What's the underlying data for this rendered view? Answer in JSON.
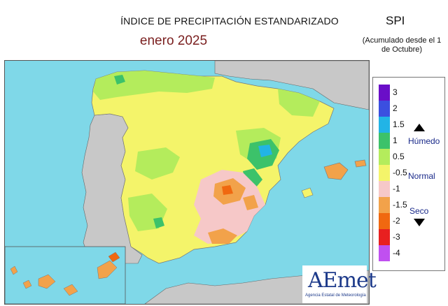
{
  "title": "ÍNDICE DE PRECIPITACIÓN ESTANDARIZADO",
  "period": "enero  2025",
  "index_name": "SPI",
  "accumulation_note": "(Acumulado desde el 1 de Octubre)",
  "legend": {
    "wet_label": "Húmedo",
    "normal_label": "Normal",
    "dry_label": "Seco",
    "classes": [
      {
        "tick": "3",
        "color": "#6a0ec8"
      },
      {
        "tick": "2",
        "color": "#3b4fe0"
      },
      {
        "tick": "1.5",
        "color": "#22b4e6"
      },
      {
        "tick": "1",
        "color": "#3cc26a"
      },
      {
        "tick": "0.5",
        "color": "#b4ec5c"
      },
      {
        "tick": "-0.5",
        "color": "#f4f46a"
      },
      {
        "tick": "-1",
        "color": "#f6c8c8"
      },
      {
        "tick": "-1.5",
        "color": "#f2a24a"
      },
      {
        "tick": "-2",
        "color": "#f06810"
      },
      {
        "tick": "-3",
        "color": "#e82020"
      },
      {
        "tick": "-4",
        "color": "#c050f0"
      }
    ]
  },
  "logo": {
    "name": "AEmet",
    "subtitle": "Agencia Estatal de Meteorología"
  },
  "colors": {
    "sea": "#7fd8e8",
    "land_outside": "#c8c8c8",
    "near_normal": "#f4f46a",
    "moderately_wet": "#b4ec5c",
    "wet": "#3cc26a",
    "very_wet": "#22b4e6",
    "moderately_dry": "#f6c8c8",
    "dry": "#f2a24a",
    "very_dry": "#f06810"
  }
}
